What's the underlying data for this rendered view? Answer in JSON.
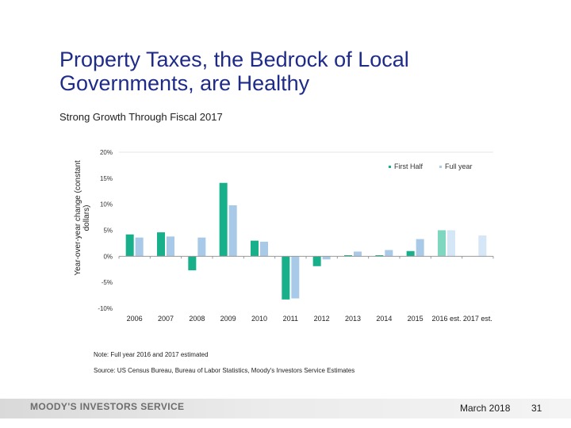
{
  "slide": {
    "title_line1": "Property Taxes, the Bedrock of Local",
    "title_line2": "Governments, are Healthy",
    "subtitle": "Strong Growth Through Fiscal 2017",
    "note": "Note: Full year 2016 and 2017 estimated",
    "source": "Source: US Census Bureau, Bureau of Labor Statistics, Moody's Investors Service Estimates",
    "brand": "MOODY'S INVESTORS SERVICE",
    "date": "March 2018",
    "page": "31"
  },
  "colors": {
    "first_half": "#17b08a",
    "full_year": "#a9c9e8",
    "first_half_est": "#7fd7bf",
    "full_year_est": "#d5e6f6",
    "title": "#1e2b88"
  },
  "chart_data": {
    "type": "bar",
    "categories": [
      "2006",
      "2007",
      "2008",
      "2009",
      "2010",
      "2011",
      "2012",
      "2013",
      "2014",
      "2015",
      "2016 est.",
      "2017 est."
    ],
    "series": [
      {
        "name": "First Half",
        "values": [
          4.2,
          4.6,
          -2.7,
          14.1,
          3.0,
          -8.3,
          -1.9,
          0.2,
          0.2,
          1.0,
          5.0,
          null
        ]
      },
      {
        "name": "Full year",
        "values": [
          3.6,
          3.8,
          3.6,
          9.8,
          2.8,
          -8.1,
          -0.6,
          0.9,
          1.2,
          3.3,
          5.0,
          4.0
        ]
      }
    ],
    "ylabel": "Year-over-year change (constant dollars)",
    "yticks": [
      "20%",
      "15%",
      "10%",
      "5%",
      "0%",
      "-5%",
      "-10%"
    ],
    "ylim": [
      -10,
      20
    ],
    "legend_position": "top-right",
    "grid": false
  }
}
